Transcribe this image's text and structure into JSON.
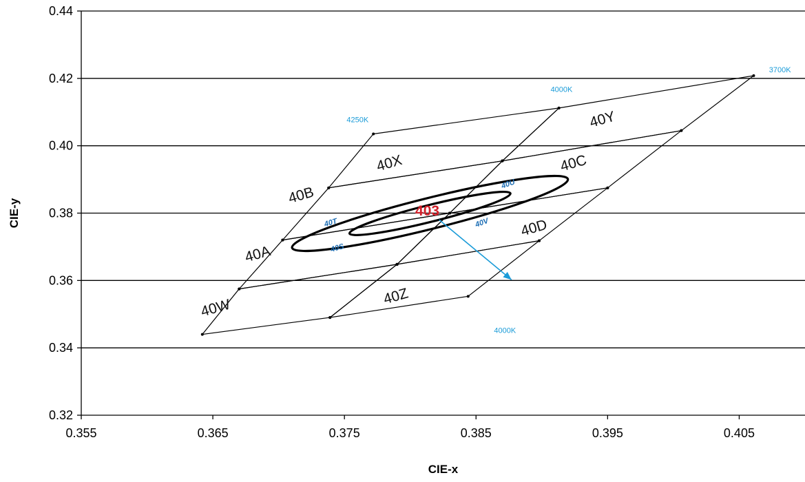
{
  "chart_data": {
    "type": "scatter",
    "title": "",
    "xlabel": "CIE-x",
    "ylabel": "CIE-y",
    "xlim": [
      0.355,
      0.41
    ],
    "ylim": [
      0.32,
      0.44
    ],
    "xticks": [
      "0.355",
      "0.365",
      "0.375",
      "0.385",
      "0.395",
      "0.405"
    ],
    "yticks": [
      "0.32",
      "0.34",
      "0.36",
      "0.38",
      "0.40",
      "0.42",
      "0.44"
    ],
    "grid": "horizontal",
    "quadrangles": [
      {
        "name": "40X",
        "corners": [
          [
            0.3772,
            0.4035
          ],
          [
            0.3913,
            0.4112
          ],
          [
            0.387,
            0.3955
          ],
          [
            0.3738,
            0.3875
          ]
        ]
      },
      {
        "name": "40Y",
        "corners": [
          [
            0.3913,
            0.4112
          ],
          [
            0.4061,
            0.4208
          ],
          [
            0.4006,
            0.4045
          ],
          [
            0.387,
            0.3955
          ]
        ]
      },
      {
        "name": "40B",
        "corners": [
          [
            0.3738,
            0.3875
          ],
          [
            0.387,
            0.3955
          ],
          [
            0.383,
            0.38
          ],
          [
            0.3703,
            0.372
          ]
        ]
      },
      {
        "name": "40C",
        "corners": [
          [
            0.387,
            0.3955
          ],
          [
            0.4006,
            0.4045
          ],
          [
            0.395,
            0.3875
          ],
          [
            0.383,
            0.38
          ]
        ]
      },
      {
        "name": "40A",
        "corners": [
          [
            0.3703,
            0.372
          ],
          [
            0.383,
            0.38
          ],
          [
            0.379,
            0.3648
          ],
          [
            0.367,
            0.3575
          ]
        ]
      },
      {
        "name": "40D",
        "corners": [
          [
            0.383,
            0.38
          ],
          [
            0.395,
            0.3875
          ],
          [
            0.3898,
            0.3718
          ],
          [
            0.379,
            0.3648
          ]
        ]
      },
      {
        "name": "40W",
        "corners": [
          [
            0.367,
            0.3575
          ],
          [
            0.379,
            0.3648
          ],
          [
            0.3739,
            0.349
          ],
          [
            0.3642,
            0.344
          ]
        ]
      },
      {
        "name": "40Z",
        "corners": [
          [
            0.379,
            0.3648
          ],
          [
            0.3898,
            0.3718
          ],
          [
            0.3844,
            0.3553
          ],
          [
            0.3739,
            0.349
          ]
        ]
      }
    ],
    "ellipses": [
      {
        "name": "outer",
        "center": [
          0.3815,
          0.3799
        ],
        "semi_axes": [
          0.0108,
          0.0046
        ],
        "rotation_deg": 14
      },
      {
        "name": "inner",
        "center": [
          0.3815,
          0.3799
        ],
        "semi_axes": [
          0.0063,
          0.0025
        ],
        "rotation_deg": 14
      }
    ],
    "quadrangle_labels": [
      {
        "text": "40X",
        "x": 0.3785,
        "y": 0.3935,
        "rotation": -16
      },
      {
        "text": "40Y",
        "x": 0.3947,
        "y": 0.4065,
        "rotation": -16
      },
      {
        "text": "40B",
        "x": 0.3718,
        "y": 0.384,
        "rotation": -16
      },
      {
        "text": "40C",
        "x": 0.3925,
        "y": 0.3935,
        "rotation": -16
      },
      {
        "text": "40A",
        "x": 0.3685,
        "y": 0.3665,
        "rotation": -16
      },
      {
        "text": "40D",
        "x": 0.3895,
        "y": 0.3743,
        "rotation": -16
      },
      {
        "text": "40W",
        "x": 0.3653,
        "y": 0.3505,
        "rotation": -16
      },
      {
        "text": "40Z",
        "x": 0.379,
        "y": 0.354,
        "rotation": -16
      }
    ],
    "inner_labels": [
      {
        "text": "40T",
        "x": 0.374,
        "y": 0.3765,
        "rotation": -16
      },
      {
        "text": "40U",
        "x": 0.3875,
        "y": 0.388,
        "rotation": -20
      },
      {
        "text": "40S",
        "x": 0.3745,
        "y": 0.369,
        "rotation": -16
      },
      {
        "text": "40V",
        "x": 0.3855,
        "y": 0.3765,
        "rotation": -20
      }
    ],
    "center_label": {
      "text": "403",
      "x": 0.3813,
      "y": 0.3793
    },
    "cct_labels": [
      {
        "text": "4250K",
        "x": 0.376,
        "y": 0.407
      },
      {
        "text": "4000K",
        "x": 0.3915,
        "y": 0.416
      },
      {
        "text": "3700K",
        "x": 0.4081,
        "y": 0.4218
      },
      {
        "text": "4000K",
        "x": 0.3872,
        "y": 0.3444
      }
    ],
    "arrow": {
      "from": [
        0.3822,
        0.378
      ],
      "to": [
        0.3877,
        0.3602
      ],
      "color": "#1a9bd8"
    },
    "colors": {
      "lines": "#000000",
      "center_label": "#d0202a",
      "inner_labels": "#1f6fb5",
      "cct": "#1a9bd8"
    }
  }
}
